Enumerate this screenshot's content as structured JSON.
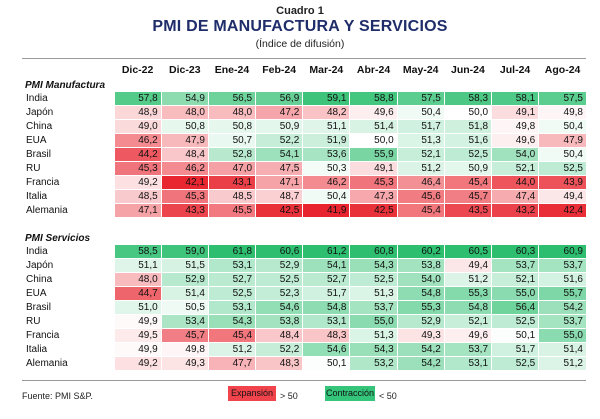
{
  "header": {
    "label": "Cuadro 1",
    "title": "PMI DE MANUFACTURA Y SERVICIOS",
    "subtitle": "(Índice de difusión)"
  },
  "columns": [
    "Dic-22",
    "Dic-23",
    "Ene-24",
    "Feb-24",
    "Mar-24",
    "Abr-24",
    "May-24",
    "Jun-24",
    "Jul-24",
    "Ago-24"
  ],
  "sections": [
    {
      "title": "PMI Manufactura",
      "rows": [
        {
          "label": "India",
          "values": [
            "57,8",
            "54,9",
            "56,5",
            "56,9",
            "59,1",
            "58,8",
            "57,5",
            "58,3",
            "58,1",
            "57,5"
          ]
        },
        {
          "label": "Japón",
          "values": [
            "48,9",
            "48,0",
            "48,0",
            "47,2",
            "48,2",
            "49,6",
            "50,4",
            "50,0",
            "49,1",
            "49,8"
          ]
        },
        {
          "label": "China",
          "values": [
            "49,0",
            "50,8",
            "50,8",
            "50,9",
            "51,1",
            "51,4",
            "51,7",
            "51,8",
            "49,8",
            "50,4"
          ]
        },
        {
          "label": "EUA",
          "values": [
            "46,2",
            "47,9",
            "50,7",
            "52,2",
            "51,9",
            "50,0",
            "51,3",
            "51,6",
            "49,6",
            "47,9"
          ]
        },
        {
          "label": "Brasil",
          "values": [
            "44,2",
            "48,4",
            "52,8",
            "54,1",
            "53,6",
            "55,9",
            "52,1",
            "52,5",
            "54,0",
            "50,4"
          ]
        },
        {
          "label": "RU",
          "values": [
            "45,3",
            "46,2",
            "47,0",
            "47,5",
            "50,3",
            "49,1",
            "51,2",
            "50,9",
            "52,1",
            "52,5"
          ]
        },
        {
          "label": "Francia",
          "values": [
            "49,2",
            "42,1",
            "43,1",
            "47,1",
            "46,2",
            "45,3",
            "46,4",
            "45,4",
            "44,0",
            "43,9"
          ]
        },
        {
          "label": "Italia",
          "values": [
            "48,5",
            "45,3",
            "48,5",
            "48,7",
            "50,4",
            "47,3",
            "45,6",
            "45,7",
            "47,4",
            "49,4"
          ]
        },
        {
          "label": "Alemania",
          "values": [
            "47,1",
            "43,3",
            "45,5",
            "42,5",
            "41,9",
            "42,5",
            "45,4",
            "43,5",
            "43,2",
            "42,4"
          ]
        }
      ]
    },
    {
      "title": "PMI Servicios",
      "rows": [
        {
          "label": "India",
          "values": [
            "58,5",
            "59,0",
            "61,8",
            "60,6",
            "61,2",
            "60,8",
            "60,2",
            "60,5",
            "60,3",
            "60,9"
          ]
        },
        {
          "label": "Japón",
          "values": [
            "51,1",
            "51,5",
            "53,1",
            "52,9",
            "54,1",
            "54,3",
            "53,8",
            "49,4",
            "53,7",
            "53,7"
          ]
        },
        {
          "label": "China",
          "values": [
            "48,0",
            "52,9",
            "52,7",
            "52,5",
            "52,7",
            "52,5",
            "54,0",
            "51,2",
            "52,1",
            "51,6"
          ]
        },
        {
          "label": "EUA",
          "values": [
            "44,7",
            "51,4",
            "52,5",
            "52,3",
            "51,7",
            "51,3",
            "54,8",
            "55,3",
            "55,0",
            "55,7"
          ]
        },
        {
          "label": "Brasil",
          "values": [
            "51,0",
            "50,5",
            "53,1",
            "54,6",
            "54,8",
            "53,7",
            "55,3",
            "54,8",
            "56,4",
            "54,2"
          ]
        },
        {
          "label": "RU",
          "values": [
            "49,9",
            "53,4",
            "54,3",
            "53,8",
            "53,1",
            "55,0",
            "52,9",
            "52,1",
            "52,5",
            "53,7"
          ]
        },
        {
          "label": "Francia",
          "values": [
            "49,5",
            "45,7",
            "45,4",
            "48,4",
            "48,3",
            "51,3",
            "49,3",
            "49,6",
            "50,1",
            "55,0"
          ]
        },
        {
          "label": "Italia",
          "values": [
            "49,9",
            "49,8",
            "51,2",
            "52,2",
            "54,6",
            "54,3",
            "54,2",
            "53,7",
            "51,7",
            "51,4"
          ]
        },
        {
          "label": "Alemania",
          "values": [
            "49,2",
            "49,3",
            "47,7",
            "48,3",
            "50,1",
            "53,2",
            "54,2",
            "53,1",
            "52,5",
            "51,2"
          ]
        }
      ]
    }
  ],
  "footer": {
    "source": "Fuente: PMI S&P.",
    "legend_red_label": "Expansión",
    "legend_red_threshold": "> 50",
    "legend_green_label": "Contracción",
    "legend_green_threshold": "< 50"
  },
  "colors": {
    "title": "#1f2d6a",
    "red_max": "#e8252f",
    "green_max": "#2dbf6f",
    "neutral": "#ffffff"
  }
}
